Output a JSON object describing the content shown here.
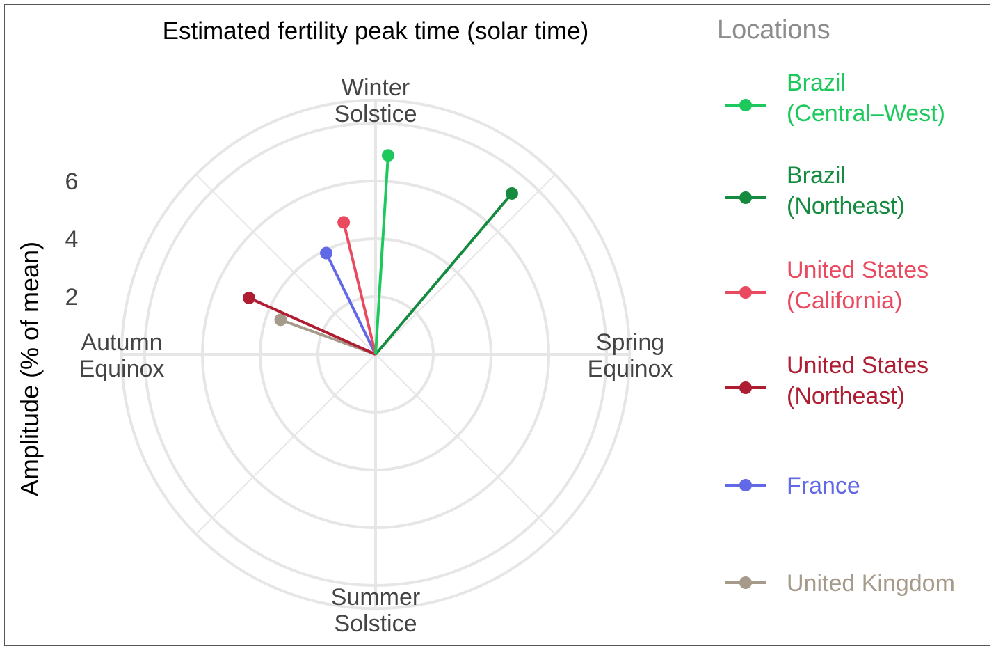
{
  "chart_data": {
    "type": "polar-line",
    "title": "Estimated fertility peak time (solar time)",
    "ylabel": "Amplitude (% of mean)",
    "radial_ticks": [
      2,
      4,
      6
    ],
    "rlim": [
      0,
      8.8
    ],
    "grid": true,
    "direction_labels": {
      "top": [
        "Winter",
        "Solstice"
      ],
      "right": [
        "Spring",
        "Equinox"
      ],
      "bottom": [
        "Summer",
        "Solstice"
      ],
      "left": [
        "Autumn",
        "Equinox"
      ]
    },
    "legend": {
      "title": "Locations",
      "placement": "right"
    },
    "series": [
      {
        "name": [
          "Brazil",
          "(Central–West)"
        ],
        "color": "#1DC95D",
        "amplitude": 6.9,
        "angle_deg": 3.6
      },
      {
        "name": [
          "Brazil",
          "(Northeast)"
        ],
        "color": "#148B3F",
        "amplitude": 7.3,
        "angle_deg": 40.3
      },
      {
        "name": [
          "United States",
          "(California)"
        ],
        "color": "#EA4A5F",
        "amplitude": 4.7,
        "angle_deg": -13.6
      },
      {
        "name": [
          "United States",
          "(Northeast)"
        ],
        "color": "#AE1D32",
        "amplitude": 4.8,
        "angle_deg": -66.0
      },
      {
        "name": [
          "France"
        ],
        "color": "#6269E6",
        "amplitude": 3.9,
        "angle_deg": -26.0
      },
      {
        "name": [
          "United Kingdom"
        ],
        "color": "#A69A8A",
        "amplitude": 3.5,
        "angle_deg": -70.0
      }
    ]
  }
}
